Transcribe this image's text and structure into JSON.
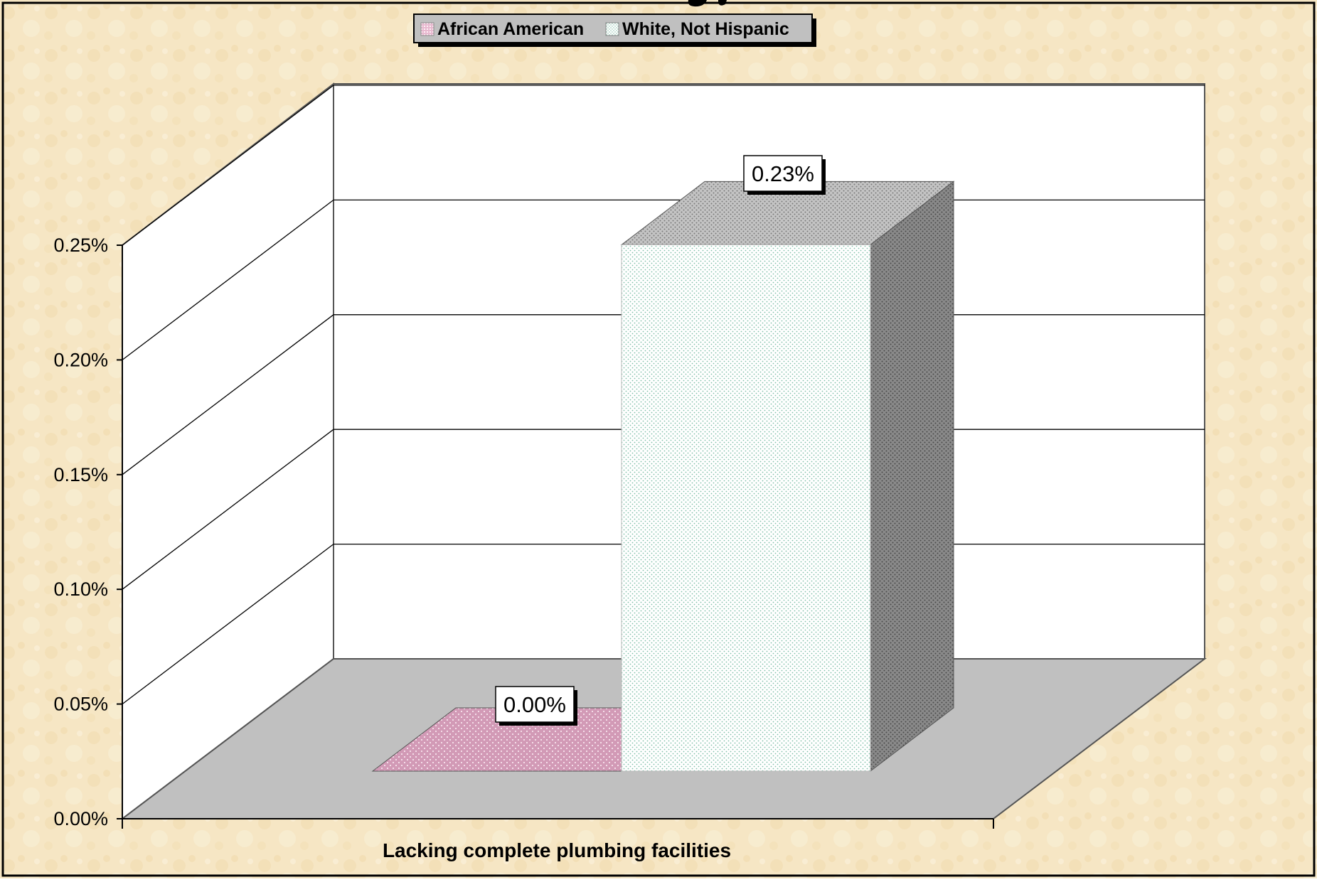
{
  "chart_data": {
    "type": "bar",
    "title": "",
    "xlabel": "Lacking complete plumbing facilities",
    "ylabel": "",
    "categories": [
      "Lacking complete plumbing facilities"
    ],
    "series": [
      {
        "name": "African American",
        "values": [
          0.0
        ],
        "data_label": "0.00%",
        "color": "#d9a3c0"
      },
      {
        "name": "White, Not Hispanic",
        "values": [
          0.23
        ],
        "data_label": "0.23%",
        "color": "#ffffff"
      }
    ],
    "ylim": [
      0,
      0.25
    ],
    "y_ticks": [
      "0.00%",
      "0.05%",
      "0.10%",
      "0.15%",
      "0.20%",
      "0.25%"
    ],
    "grid": true,
    "legend_position": "top-center",
    "colors": {
      "background": "#f6e7c6",
      "floor": "#c0c0c0",
      "wall": "#ffffff",
      "bar_side": "#808080",
      "bar_top": "#c0c0c0"
    }
  }
}
